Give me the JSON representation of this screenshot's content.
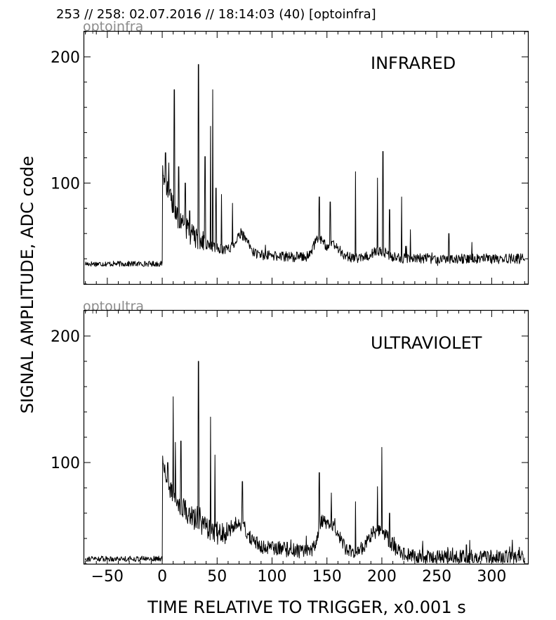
{
  "header": "253 // 258:   02.07.2016 // 18:14:03 (40)  [optoinfra]",
  "xlabel": "TIME RELATIVE TO TRIGGER,   x0.001 s",
  "ylabel": "SIGNAL AMPLITUDE,  ADC code",
  "chart_data": [
    {
      "type": "line",
      "tag": "optoinfra",
      "title": "INFRARED",
      "xlim": [
        -71,
        333
      ],
      "ylim": [
        20,
        220
      ],
      "xticks": [
        -50,
        0,
        50,
        100,
        150,
        200,
        250,
        300
      ],
      "xtick_labels": [],
      "yticks": [
        100,
        200
      ],
      "ytick_labels": [
        "100",
        "200"
      ],
      "baseline_before_trigger": 36,
      "spikes": [
        {
          "x": 1,
          "y": 106
        },
        {
          "x": 3,
          "y": 124
        },
        {
          "x": 6,
          "y": 116
        },
        {
          "x": 11,
          "y": 174
        },
        {
          "x": 15,
          "y": 113
        },
        {
          "x": 21,
          "y": 100
        },
        {
          "x": 25,
          "y": 78
        },
        {
          "x": 33,
          "y": 194
        },
        {
          "x": 39,
          "y": 121
        },
        {
          "x": 44,
          "y": 145
        },
        {
          "x": 46,
          "y": 174
        },
        {
          "x": 49,
          "y": 96
        },
        {
          "x": 54,
          "y": 91
        },
        {
          "x": 64,
          "y": 84
        },
        {
          "x": 143,
          "y": 89
        },
        {
          "x": 153,
          "y": 85
        },
        {
          "x": 176,
          "y": 109
        },
        {
          "x": 196,
          "y": 104
        },
        {
          "x": 201,
          "y": 125
        },
        {
          "x": 207,
          "y": 79
        },
        {
          "x": 218,
          "y": 89
        },
        {
          "x": 226,
          "y": 63
        },
        {
          "x": 261,
          "y": 60
        },
        {
          "x": 282,
          "y": 53
        }
      ]
    },
    {
      "type": "line",
      "tag": "optoultra",
      "title": "ULTRAVIOLET",
      "xlim": [
        -71,
        333
      ],
      "ylim": [
        20,
        220
      ],
      "xticks": [
        -50,
        0,
        50,
        100,
        150,
        200,
        250,
        300
      ],
      "xtick_labels": [
        "−50",
        "0",
        "50",
        "100",
        "150",
        "200",
        "250",
        "300"
      ],
      "yticks": [
        100,
        200
      ],
      "yticks_labels_note": "",
      "ytick_labels": [
        "100",
        "200"
      ],
      "baseline_before_trigger": 24,
      "spikes": [
        {
          "x": 1,
          "y": 99
        },
        {
          "x": 5,
          "y": 100
        },
        {
          "x": 10,
          "y": 152
        },
        {
          "x": 12,
          "y": 116
        },
        {
          "x": 17,
          "y": 117
        },
        {
          "x": 33,
          "y": 180
        },
        {
          "x": 44,
          "y": 136
        },
        {
          "x": 48,
          "y": 106
        },
        {
          "x": 73,
          "y": 85
        },
        {
          "x": 143,
          "y": 92
        },
        {
          "x": 154,
          "y": 76
        },
        {
          "x": 176,
          "y": 69
        },
        {
          "x": 196,
          "y": 81
        },
        {
          "x": 200,
          "y": 112
        },
        {
          "x": 207,
          "y": 60
        },
        {
          "x": 260,
          "y": 33
        },
        {
          "x": 277,
          "y": 35
        }
      ]
    }
  ]
}
